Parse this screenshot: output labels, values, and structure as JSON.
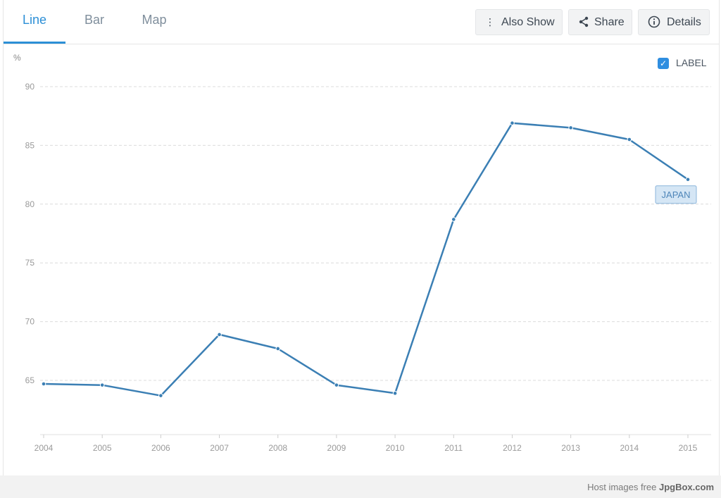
{
  "tabs": [
    {
      "label": "Line",
      "active": true
    },
    {
      "label": "Bar",
      "active": false
    },
    {
      "label": "Map",
      "active": false
    }
  ],
  "toolbar": {
    "also_show_label": "Also Show",
    "share_label": "Share",
    "details_label": "Details"
  },
  "label_toggle": {
    "text": "LABEL",
    "checked": true
  },
  "footer": {
    "prefix": "Host images free ",
    "brand": "JpgBox.com"
  },
  "colors": {
    "accent": "#2c8fd6",
    "line": "#3b7fb4",
    "grid": "#dcdcdc"
  },
  "chart_data": {
    "type": "line",
    "ylabel": "%",
    "x": [
      "2004",
      "2005",
      "2006",
      "2007",
      "2008",
      "2009",
      "2010",
      "2011",
      "2012",
      "2013",
      "2014",
      "2015"
    ],
    "series": [
      {
        "name": "JAPAN",
        "values": [
          64.7,
          64.6,
          63.7,
          68.9,
          67.7,
          64.6,
          63.9,
          78.7,
          86.9,
          86.5,
          85.5,
          82.1
        ]
      }
    ],
    "yticks": [
      65,
      70,
      75,
      80,
      85,
      90
    ],
    "ylim": [
      60,
      92
    ],
    "grid": true
  }
}
